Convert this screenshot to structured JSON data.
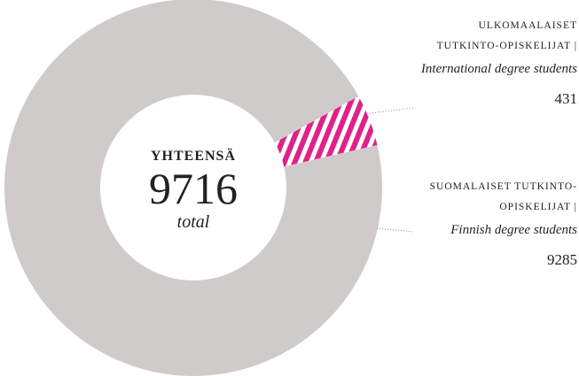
{
  "chart_data": {
    "type": "donut",
    "center_title": "YHTEENSÄ",
    "total": 9716,
    "total_label": "total",
    "categories": [
      "ULKOMAALAISET TUTKINTO-OPISKELIJAT |",
      "SUOMALAISET TUTKINTO-OPISKELIJAT |"
    ],
    "subtitles": [
      "International degree students",
      "Finnish degree students"
    ],
    "values": [
      431,
      9285
    ],
    "colors": [
      "#e0218a",
      "#cfcbca"
    ],
    "hatched": [
      true,
      false
    ]
  }
}
